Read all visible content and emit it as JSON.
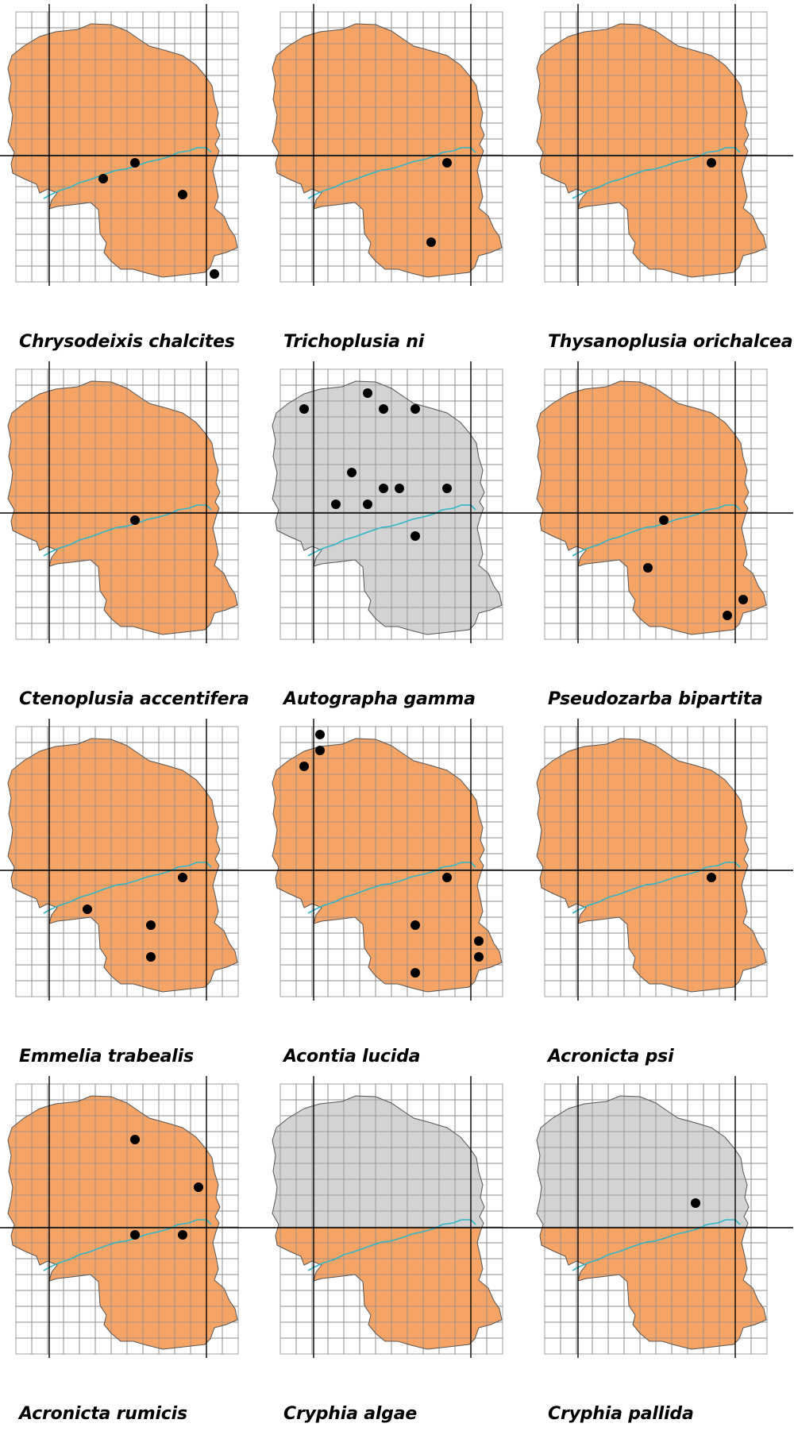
{
  "colors": {
    "occupied_fill": "#f5a466",
    "absent_fill": "#d3d3d3",
    "outline": "#555555",
    "grid": "#8a8a8a",
    "river": "#2fb6c8",
    "axis_line": "#000000",
    "record_dot": "#000000"
  },
  "maps": [
    {
      "species": "Chrysodeixis chalcites",
      "fill": "occupied",
      "records": [
        [
          7,
          8
        ],
        [
          5,
          9
        ],
        [
          10,
          10
        ],
        [
          12,
          15
        ]
      ]
    },
    {
      "species": "Trichoplusia ni",
      "fill": "occupied",
      "records": [
        [
          10,
          8
        ],
        [
          9,
          13
        ]
      ]
    },
    {
      "species": "Thysanoplusia orichalcea",
      "fill": "occupied",
      "records": [
        [
          10,
          8
        ]
      ]
    },
    {
      "species": "Ctenoplusia accentifera",
      "fill": "occupied",
      "records": [
        [
          7,
          8
        ]
      ]
    },
    {
      "species": "Autographa gamma",
      "fill": "absent",
      "records": [
        [
          1,
          1
        ],
        [
          5,
          0
        ],
        [
          6,
          1
        ],
        [
          8,
          1
        ],
        [
          4,
          5
        ],
        [
          6,
          6
        ],
        [
          7,
          6
        ],
        [
          10,
          6
        ],
        [
          3,
          7
        ],
        [
          5,
          7
        ],
        [
          8,
          9
        ]
      ]
    },
    {
      "species": "Pseudozarba bipartita",
      "fill": "occupied",
      "records": [
        [
          7,
          8
        ],
        [
          6,
          11
        ],
        [
          11,
          14
        ],
        [
          12,
          13
        ]
      ]
    },
    {
      "species": "Emmelia trabealis",
      "fill": "occupied",
      "records": [
        [
          10,
          8
        ],
        [
          4,
          10
        ],
        [
          8,
          11
        ],
        [
          8,
          13
        ]
      ]
    },
    {
      "species": "Acontia lucida",
      "fill": "occupied",
      "records": [
        [
          2,
          -1
        ],
        [
          2,
          0
        ],
        [
          1,
          1
        ],
        [
          10,
          8
        ],
        [
          8,
          11
        ],
        [
          12,
          12
        ],
        [
          12,
          13
        ],
        [
          8,
          14
        ]
      ]
    },
    {
      "species": "Acronicta psi",
      "fill": "occupied",
      "records": [
        [
          10,
          8
        ]
      ]
    },
    {
      "species": "Acronicta rumicis",
      "fill": "occupied",
      "records": [
        [
          7,
          2
        ],
        [
          11,
          5
        ],
        [
          7,
          8
        ],
        [
          10,
          8
        ]
      ]
    },
    {
      "species": "Cryphia algae",
      "fill": "partial",
      "records": []
    },
    {
      "species": "Cryphia pallida",
      "fill": "partial",
      "records": [
        [
          9,
          6
        ]
      ]
    }
  ]
}
